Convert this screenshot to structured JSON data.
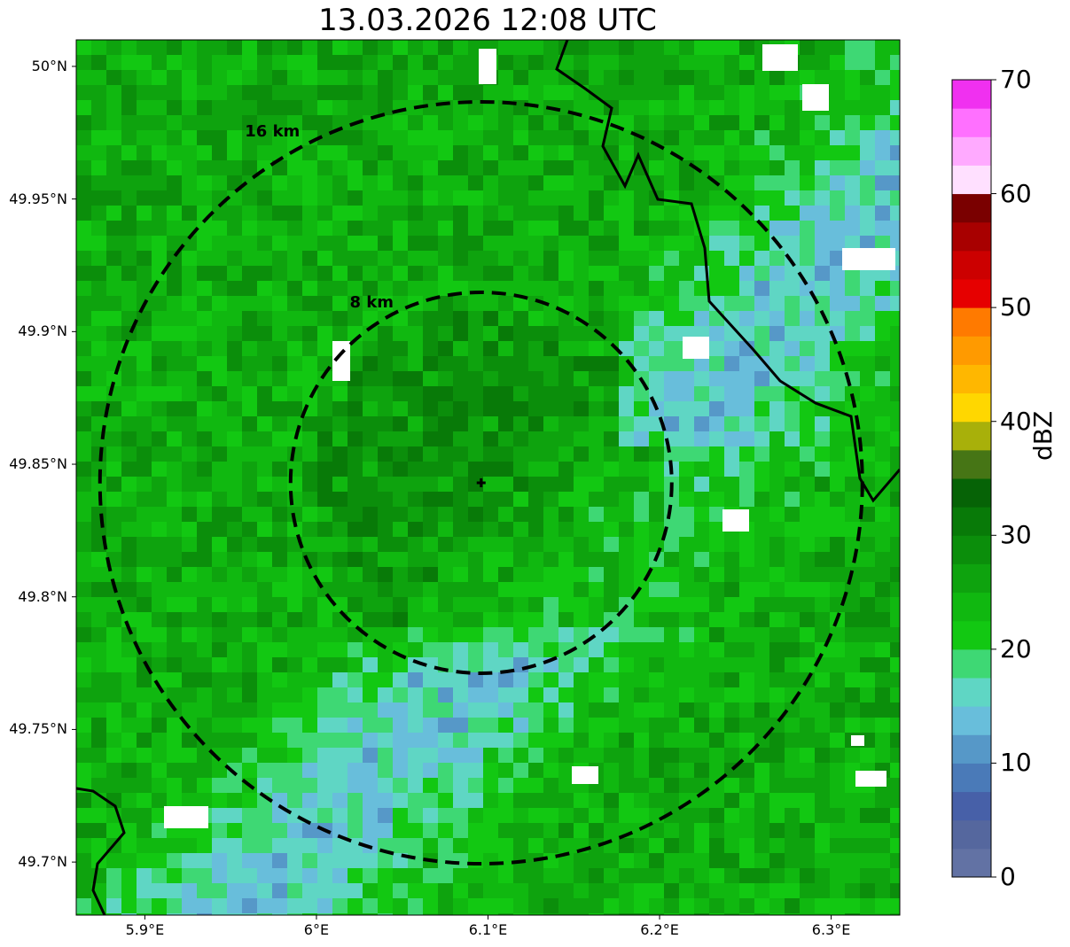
{
  "title": "13.03.2026 12:08 UTC",
  "chart_data": {
    "type": "heatmap",
    "title": "13.03.2026 12:08 UTC",
    "x_ticks": [
      "5.9°E",
      "6°E",
      "6.1°E",
      "6.2°E",
      "6.3°E"
    ],
    "x_tick_values": [
      5.9,
      6.0,
      6.1,
      6.2,
      6.3
    ],
    "y_ticks": [
      "50°N",
      "49.95°N",
      "49.9°N",
      "49.85°N",
      "49.8°N",
      "49.75°N",
      "49.7°N"
    ],
    "y_tick_values": [
      50.0,
      49.95,
      49.9,
      49.85,
      49.8,
      49.75,
      49.7
    ],
    "xlim": [
      5.86,
      6.34
    ],
    "ylim": [
      49.68,
      50.01
    ],
    "radar_center": {
      "lon": 6.096,
      "lat": 49.843
    },
    "range_rings": [
      {
        "label": "8 km",
        "radius_km": 8
      },
      {
        "label": "16 km",
        "radius_km": 16
      }
    ],
    "colorbar": {
      "label": "dBZ",
      "range": [
        0,
        70
      ],
      "tick_labels": [
        "0",
        "10",
        "20",
        "30",
        "40",
        "50",
        "60",
        "70"
      ],
      "tick_values": [
        0,
        10,
        20,
        30,
        40,
        50,
        60,
        70
      ],
      "colors": [
        "#6272a4",
        "#55679e",
        "#4760a8",
        "#4a7ab8",
        "#5698c8",
        "#68bedb",
        "#5fd6c4",
        "#3ed874",
        "#12c812",
        "#10b810",
        "#0ea30e",
        "#0b8e0b",
        "#087a08",
        "#066306",
        "#467515",
        "#a8b00a",
        "#ffd700",
        "#ffb700",
        "#ff9a00",
        "#ff7a00",
        "#e60000",
        "#cc0000",
        "#a80000",
        "#7a0000",
        "#ffe0ff",
        "#ffaaff",
        "#ff70ff",
        "#f030f0"
      ]
    }
  }
}
